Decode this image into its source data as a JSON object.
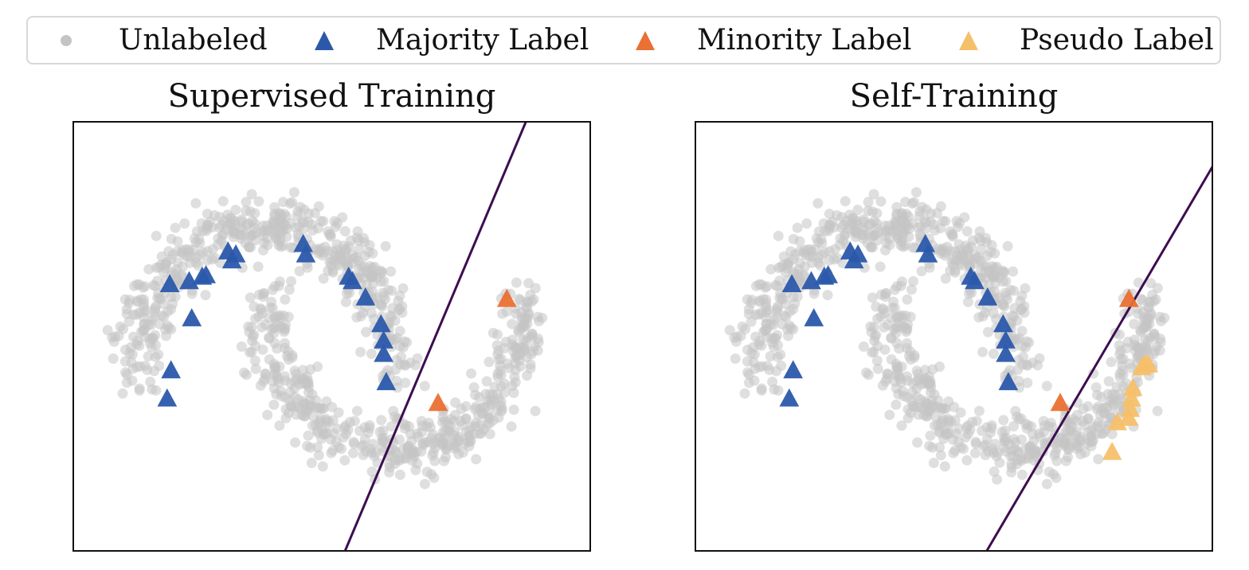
{
  "legend": {
    "items": [
      {
        "label": "Unlabeled",
        "marker": "circle",
        "color": "#c4c4c4"
      },
      {
        "label": "Majority Label",
        "marker": "triangle",
        "color": "#2b58ab"
      },
      {
        "label": "Minority Label",
        "marker": "triangle",
        "color": "#ea7033"
      },
      {
        "label": "Pseudo Label",
        "marker": "triangle",
        "color": "#f5c06a"
      }
    ]
  },
  "chart_data": [
    {
      "type": "scatter",
      "title": "Supervised Training",
      "xlim": [
        -1.5,
        2.5
      ],
      "ylim": [
        -1.2,
        1.7
      ],
      "grid": false,
      "ticks": false,
      "unlabeled_dataset": "two interleaving half moons (~1000 points)",
      "series": [
        {
          "name": "Majority Label",
          "marker": "triangle",
          "color": "#2b58ab",
          "points": [
            [
              -0.75,
              0.6
            ],
            [
              -0.6,
              0.62
            ],
            [
              -0.5,
              0.65
            ],
            [
              -0.47,
              0.66
            ],
            [
              -0.3,
              0.82
            ],
            [
              -0.24,
              0.8
            ],
            [
              -0.27,
              0.76
            ],
            [
              0.28,
              0.87
            ],
            [
              0.3,
              0.8
            ],
            [
              0.63,
              0.65
            ],
            [
              0.66,
              0.62
            ],
            [
              0.76,
              0.51
            ],
            [
              0.88,
              0.33
            ],
            [
              0.9,
              0.22
            ],
            [
              0.9,
              0.13
            ],
            [
              0.92,
              -0.06
            ],
            [
              -0.74,
              0.02
            ],
            [
              -0.58,
              0.37
            ],
            [
              -0.77,
              -0.17
            ]
          ]
        },
        {
          "name": "Minority Label",
          "marker": "triangle",
          "color": "#ea7033",
          "points": [
            [
              1.85,
              0.5
            ],
            [
              1.32,
              -0.2
            ]
          ]
        }
      ],
      "decision_boundary": {
        "color": "#3d0d50",
        "x": [
          0.6,
          2.0
        ],
        "y": [
          -1.2,
          1.7
        ]
      }
    },
    {
      "type": "scatter",
      "title": "Self-Training",
      "xlim": [
        -1.5,
        2.5
      ],
      "ylim": [
        -1.2,
        1.7
      ],
      "grid": false,
      "ticks": false,
      "unlabeled_dataset": "two interleaving half moons (~1000 points)",
      "series": [
        {
          "name": "Majority Label",
          "marker": "triangle",
          "color": "#2b58ab",
          "points": [
            [
              -0.75,
              0.6
            ],
            [
              -0.6,
              0.62
            ],
            [
              -0.5,
              0.65
            ],
            [
              -0.47,
              0.66
            ],
            [
              -0.3,
              0.82
            ],
            [
              -0.24,
              0.8
            ],
            [
              -0.27,
              0.76
            ],
            [
              0.28,
              0.87
            ],
            [
              0.3,
              0.8
            ],
            [
              0.63,
              0.65
            ],
            [
              0.66,
              0.62
            ],
            [
              0.76,
              0.51
            ],
            [
              0.88,
              0.33
            ],
            [
              0.9,
              0.22
            ],
            [
              0.9,
              0.13
            ],
            [
              0.92,
              -0.06
            ],
            [
              -0.74,
              0.02
            ],
            [
              -0.58,
              0.37
            ],
            [
              -0.77,
              -0.17
            ]
          ]
        },
        {
          "name": "Minority Label",
          "marker": "triangle",
          "color": "#ea7033",
          "points": [
            [
              1.85,
              0.5
            ],
            [
              1.32,
              -0.2
            ]
          ]
        },
        {
          "name": "Pseudo Label",
          "marker": "triangle",
          "color": "#f5c06a",
          "points": [
            [
              1.97,
              0.06
            ],
            [
              2.0,
              0.06
            ],
            [
              1.95,
              0.04
            ],
            [
              1.88,
              -0.1
            ],
            [
              1.87,
              -0.17
            ],
            [
              1.86,
              -0.24
            ],
            [
              1.85,
              -0.3
            ],
            [
              1.76,
              -0.33
            ],
            [
              1.72,
              -0.53
            ]
          ]
        }
      ],
      "decision_boundary": {
        "color": "#3d0d50",
        "x": [
          0.75,
          2.5
        ],
        "y": [
          -1.2,
          1.4
        ]
      }
    }
  ]
}
